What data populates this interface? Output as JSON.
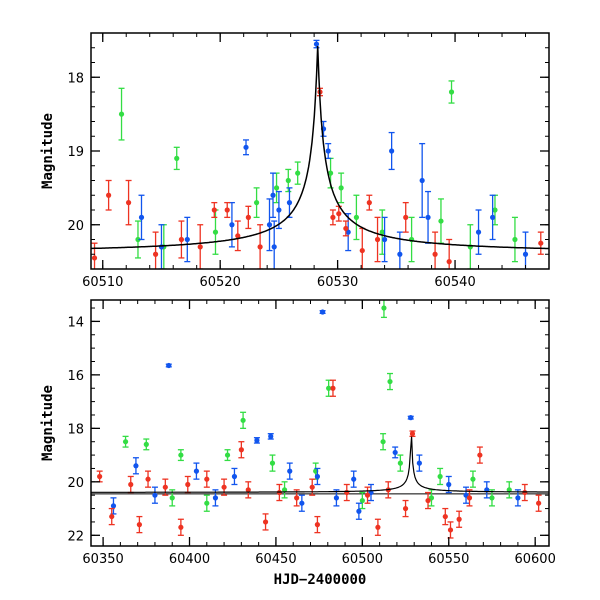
{
  "colors": {
    "green": "#33dd44",
    "blue": "#1155ee",
    "red": "#ee3322",
    "fit": "#000000"
  },
  "chart_data": [
    {
      "type": "scatter",
      "title": "",
      "xlabel": "",
      "ylabel": "Magnitude",
      "xlim": [
        60509,
        60548
      ],
      "ylim": [
        20.6,
        17.4
      ],
      "y_inverted": true,
      "xticks": [
        60510,
        60520,
        60530,
        60540
      ],
      "yticks": [
        18,
        19,
        20
      ],
      "grid": false,
      "legend": "none",
      "fit_curve": {
        "type": "line",
        "peak_x": 60528.3,
        "peak_y": 17.55,
        "baseline_y": 20.4
      },
      "series": [
        {
          "color": "green",
          "points": [
            [
              60511.6,
              18.5,
              0.35
            ],
            [
              60516.3,
              19.1,
              0.15
            ],
            [
              60539.7,
              18.2,
              0.15
            ],
            [
              60513.0,
              20.2,
              0.25
            ],
            [
              60523.1,
              19.7,
              0.2
            ],
            [
              60524.8,
              19.5,
              0.2
            ],
            [
              60525.8,
              19.4,
              0.15
            ],
            [
              60526.6,
              19.3,
              0.15
            ],
            [
              60529.4,
              19.3,
              0.2
            ],
            [
              60530.3,
              19.5,
              0.2
            ],
            [
              60531.6,
              19.9,
              0.3
            ],
            [
              60533.8,
              20.1,
              0.3
            ],
            [
              60536.3,
              20.2,
              0.3
            ],
            [
              60538.8,
              19.95,
              0.3
            ],
            [
              60541.3,
              20.3,
              0.3
            ],
            [
              60543.4,
              19.8,
              0.2
            ],
            [
              60545.1,
              20.2,
              0.3
            ],
            [
              60515.2,
              20.3,
              0.3
            ],
            [
              60519.6,
              20.1,
              0.3
            ]
          ]
        },
        {
          "color": "blue",
          "points": [
            [
              60528.2,
              17.55,
              0.05
            ],
            [
              60528.8,
              18.7,
              0.1
            ],
            [
              60529.2,
              19.0,
              0.1
            ],
            [
              60522.2,
              18.95,
              0.1
            ],
            [
              60534.6,
              19.0,
              0.25
            ],
            [
              60537.2,
              19.4,
              0.5
            ],
            [
              60537.7,
              19.9,
              0.35
            ],
            [
              60524.5,
              19.6,
              0.3
            ],
            [
              60524.2,
              20.0,
              0.35
            ],
            [
              60524.6,
              20.3,
              0.35
            ],
            [
              60525.0,
              19.8,
              0.25
            ],
            [
              60525.9,
              19.7,
              0.2
            ],
            [
              60513.3,
              19.9,
              0.3
            ],
            [
              60515.0,
              20.3,
              0.3
            ],
            [
              60517.2,
              20.2,
              0.3
            ],
            [
              60521.0,
              20.0,
              0.3
            ],
            [
              60530.9,
              20.1,
              0.25
            ],
            [
              60534.0,
              20.2,
              0.3
            ],
            [
              60535.3,
              20.4,
              0.3
            ],
            [
              60542.0,
              20.1,
              0.3
            ],
            [
              60543.2,
              19.9,
              0.3
            ],
            [
              60546.0,
              20.4,
              0.3
            ]
          ]
        },
        {
          "color": "red",
          "points": [
            [
              60528.5,
              18.2,
              0.05
            ],
            [
              60509.3,
              20.45,
              0.2
            ],
            [
              60510.5,
              19.6,
              0.2
            ],
            [
              60512.2,
              19.7,
              0.3
            ],
            [
              60514.5,
              20.4,
              0.3
            ],
            [
              60516.7,
              20.2,
              0.25
            ],
            [
              60518.3,
              20.3,
              0.3
            ],
            [
              60519.5,
              19.8,
              0.1
            ],
            [
              60520.6,
              19.8,
              0.1
            ],
            [
              60521.5,
              20.15,
              0.2
            ],
            [
              60522.4,
              19.9,
              0.15
            ],
            [
              60523.4,
              20.3,
              0.3
            ],
            [
              60529.6,
              19.9,
              0.1
            ],
            [
              60530.1,
              19.85,
              0.1
            ],
            [
              60530.7,
              20.05,
              0.1
            ],
            [
              60532.1,
              20.35,
              0.3
            ],
            [
              60532.7,
              19.7,
              0.1
            ],
            [
              60533.4,
              20.2,
              0.3
            ],
            [
              60535.8,
              19.9,
              0.2
            ],
            [
              60538.3,
              20.4,
              0.3
            ],
            [
              60539.5,
              20.5,
              0.3
            ],
            [
              60547.3,
              20.25,
              0.15
            ]
          ]
        }
      ]
    },
    {
      "type": "scatter",
      "title": "",
      "xlabel": "HJD−2400000",
      "ylabel": "Magnitude",
      "xlim": [
        60343,
        60608
      ],
      "ylim": [
        22.4,
        13.2
      ],
      "y_inverted": true,
      "xticks": [
        60350,
        60400,
        60450,
        60500,
        60550,
        60600
      ],
      "yticks": [
        14,
        16,
        18,
        20,
        22
      ],
      "grid": false,
      "legend": "none",
      "reference_line_y": 20.45,
      "fit_curve": {
        "type": "line",
        "peak_x": 60528.3,
        "peak_y": 17.55,
        "baseline_y": 20.4
      },
      "series": [
        {
          "color": "green",
          "points": [
            [
              60512.5,
              13.5,
              0.35
            ],
            [
              60480.5,
              16.5,
              0.3
            ],
            [
              60516.0,
              16.25,
              0.3
            ],
            [
              60431.0,
              17.7,
              0.3
            ],
            [
              60512.0,
              18.5,
              0.3
            ],
            [
              60363.0,
              18.5,
              0.2
            ],
            [
              60375.0,
              18.6,
              0.2
            ],
            [
              60395.0,
              19.0,
              0.2
            ],
            [
              60422.0,
              19.0,
              0.2
            ],
            [
              60448.0,
              19.3,
              0.3
            ],
            [
              60473.0,
              19.6,
              0.3
            ],
            [
              60522.0,
              19.3,
              0.3
            ],
            [
              60545.0,
              19.8,
              0.3
            ],
            [
              60564.0,
              19.9,
              0.3
            ],
            [
              60585.0,
              20.3,
              0.3
            ],
            [
              60390.0,
              20.6,
              0.3
            ],
            [
              60410.0,
              20.8,
              0.3
            ],
            [
              60455.0,
              20.3,
              0.3
            ],
            [
              60500.0,
              20.7,
              0.3
            ],
            [
              60540.0,
              20.6,
              0.3
            ],
            [
              60575.0,
              20.6,
              0.3
            ]
          ]
        },
        {
          "color": "blue",
          "points": [
            [
              60477.0,
              13.65,
              0.05
            ],
            [
              60388.0,
              15.65,
              0.05
            ],
            [
              60528.0,
              17.6,
              0.05
            ],
            [
              60439.0,
              18.45,
              0.1
            ],
            [
              60447.0,
              18.3,
              0.1
            ],
            [
              60519.0,
              18.9,
              0.2
            ],
            [
              60474.0,
              19.8,
              0.3
            ],
            [
              60369.0,
              19.4,
              0.3
            ],
            [
              60404.0,
              19.6,
              0.3
            ],
            [
              60426.0,
              19.8,
              0.3
            ],
            [
              60458.0,
              19.6,
              0.3
            ],
            [
              60495.0,
              19.9,
              0.3
            ],
            [
              60505.0,
              20.4,
              0.3
            ],
            [
              60533.0,
              19.3,
              0.3
            ],
            [
              60550.0,
              20.1,
              0.3
            ],
            [
              60560.0,
              20.5,
              0.3
            ],
            [
              60572.0,
              20.3,
              0.3
            ],
            [
              60590.0,
              20.6,
              0.3
            ],
            [
              60380.0,
              20.5,
              0.3
            ],
            [
              60415.0,
              20.6,
              0.3
            ],
            [
              60465.0,
              20.8,
              0.3
            ],
            [
              60485.0,
              20.6,
              0.3
            ],
            [
              60498.0,
              21.1,
              0.3
            ],
            [
              60356.0,
              20.9,
              0.3
            ]
          ]
        },
        {
          "color": "red",
          "points": [
            [
              60483.0,
              16.5,
              0.3
            ],
            [
              60529.0,
              18.2,
              0.1
            ],
            [
              60348.0,
              19.8,
              0.2
            ],
            [
              60366.0,
              20.1,
              0.3
            ],
            [
              60376.0,
              19.9,
              0.3
            ],
            [
              60386.0,
              20.2,
              0.3
            ],
            [
              60399.0,
              20.1,
              0.3
            ],
            [
              60410.0,
              19.9,
              0.3
            ],
            [
              60420.0,
              20.2,
              0.3
            ],
            [
              60430.0,
              18.8,
              0.3
            ],
            [
              60434.0,
              20.3,
              0.3
            ],
            [
              60452.0,
              20.4,
              0.3
            ],
            [
              60462.0,
              20.6,
              0.3
            ],
            [
              60471.0,
              20.2,
              0.3
            ],
            [
              60491.0,
              20.4,
              0.3
            ],
            [
              60503.0,
              20.5,
              0.3
            ],
            [
              60515.0,
              20.3,
              0.3
            ],
            [
              60525.0,
              21.0,
              0.3
            ],
            [
              60538.0,
              20.7,
              0.3
            ],
            [
              60548.0,
              21.3,
              0.3
            ],
            [
              60556.0,
              21.4,
              0.3
            ],
            [
              60562.0,
              20.6,
              0.3
            ],
            [
              60568.0,
              19.0,
              0.3
            ],
            [
              60594.0,
              20.4,
              0.3
            ],
            [
              60602.0,
              20.8,
              0.3
            ],
            [
              60355.0,
              21.3,
              0.3
            ],
            [
              60371.0,
              21.6,
              0.3
            ],
            [
              60395.0,
              21.7,
              0.3
            ],
            [
              60444.0,
              21.5,
              0.3
            ],
            [
              60474.0,
              21.6,
              0.3
            ],
            [
              60509.0,
              21.7,
              0.3
            ],
            [
              60551.0,
              21.8,
              0.3
            ]
          ]
        }
      ]
    }
  ]
}
